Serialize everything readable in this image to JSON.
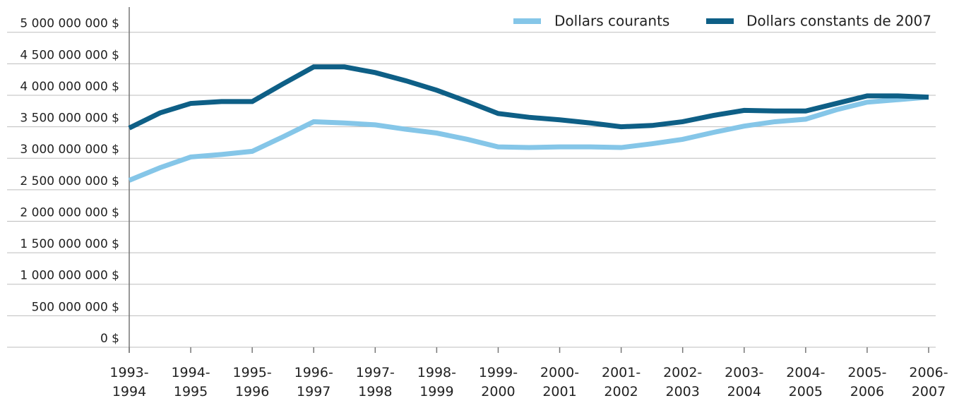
{
  "chart_data": {
    "type": "line",
    "categories": [
      "1993-\n1994",
      null,
      "1994-\n1995",
      null,
      "1995-\n1996",
      null,
      "1996-\n1997",
      null,
      "1997-\n1998",
      null,
      "1998-\n1999",
      null,
      "1999-\n2000",
      null,
      "2000-\n2001",
      null,
      "2001-\n2002",
      null,
      "2002-\n2003",
      null,
      "2003-\n2004",
      null,
      "2004-\n2005",
      null,
      "2005-\n2006",
      null,
      "2006-\n2007"
    ],
    "series": [
      {
        "name": "Dollars courants",
        "color": "#85c6e8",
        "values": [
          2650000000,
          2850000000,
          3020000000,
          3060000000,
          3110000000,
          3340000000,
          3580000000,
          3560000000,
          3530000000,
          3460000000,
          3400000000,
          3300000000,
          3180000000,
          3170000000,
          3180000000,
          3180000000,
          3170000000,
          3230000000,
          3300000000,
          3410000000,
          3510000000,
          3580000000,
          3620000000,
          3770000000,
          3890000000,
          3930000000,
          3970000000
        ]
      },
      {
        "name": "Dollars constants de 2007",
        "color": "#0e5f86",
        "values": [
          3480000000,
          3720000000,
          3870000000,
          3900000000,
          3900000000,
          4180000000,
          4450000000,
          4450000000,
          4360000000,
          4230000000,
          4080000000,
          3900000000,
          3710000000,
          3650000000,
          3610000000,
          3560000000,
          3500000000,
          3520000000,
          3580000000,
          3680000000,
          3760000000,
          3750000000,
          3750000000,
          3870000000,
          3990000000,
          3990000000,
          3970000000
        ]
      }
    ],
    "ylim": [
      0,
      5400000000
    ],
    "yticks": [
      {
        "value": 0,
        "label": "0 $"
      },
      {
        "value": 500000000,
        "label": "500 000 000 $"
      },
      {
        "value": 1000000000,
        "label": "1 000 000 000 $"
      },
      {
        "value": 1500000000,
        "label": "1 500 000 000 $"
      },
      {
        "value": 2000000000,
        "label": "2 000 000 000 $"
      },
      {
        "value": 2500000000,
        "label": "2 500 000 000 $"
      },
      {
        "value": 3000000000,
        "label": "3 000 000 000 $"
      },
      {
        "value": 3500000000,
        "label": "3 500 000 000 $"
      },
      {
        "value": 4000000000,
        "label": "4 000 000 000 $"
      },
      {
        "value": 4500000000,
        "label": "4 500 000 000 $"
      },
      {
        "value": 5000000000,
        "label": "5 000 000 000 $"
      }
    ],
    "grid": true,
    "legend": "top-right"
  }
}
